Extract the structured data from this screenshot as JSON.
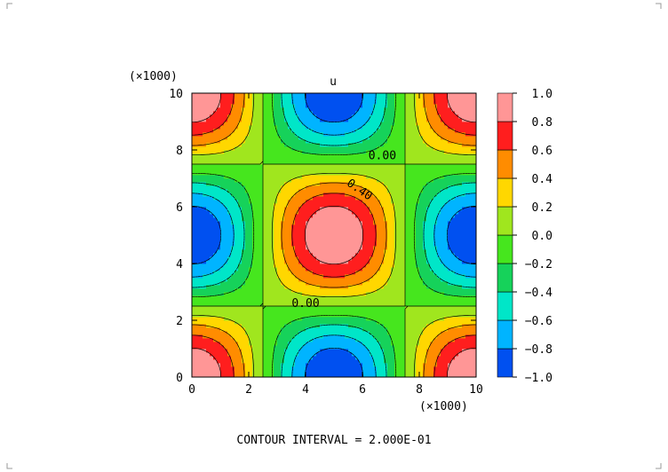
{
  "chart_data": {
    "type": "heatmap",
    "title": "u",
    "field": "u(x,y) = cos(2*pi*x/10000) * cos(2*pi*y/10000)",
    "x_multiplier": "(×1000)",
    "y_multiplier": "(×1000)",
    "xlim": [
      0,
      10
    ],
    "ylim": [
      0,
      10
    ],
    "x_ticks": [
      "0",
      "2",
      "4",
      "6",
      "8",
      "10"
    ],
    "y_ticks": [
      "0",
      "2",
      "4",
      "6",
      "8",
      "10"
    ],
    "contour_interval": 0.2,
    "contour_levels": [
      -1.0,
      -0.8,
      -0.6,
      -0.4,
      -0.2,
      0.0,
      0.2,
      0.4,
      0.6,
      0.8,
      1.0
    ],
    "contour_labels": [
      "0.00",
      "0.40",
      "0.00"
    ],
    "footer": "CONTOUR INTERVAL = 2.000E-01",
    "colorbar": {
      "ticks": [
        "1.0",
        "0.8",
        "0.6",
        "0.4",
        "0.2",
        "0.0",
        "−0.2",
        "−0.4",
        "−0.6",
        "−0.8",
        "−1.0"
      ],
      "colors": [
        "#0050f0",
        "#00b4ff",
        "#00e6c8",
        "#16d25a",
        "#46e61e",
        "#a0e61e",
        "#ffd700",
        "#ff8c00",
        "#ff1e1e",
        "#ff9696"
      ]
    }
  }
}
